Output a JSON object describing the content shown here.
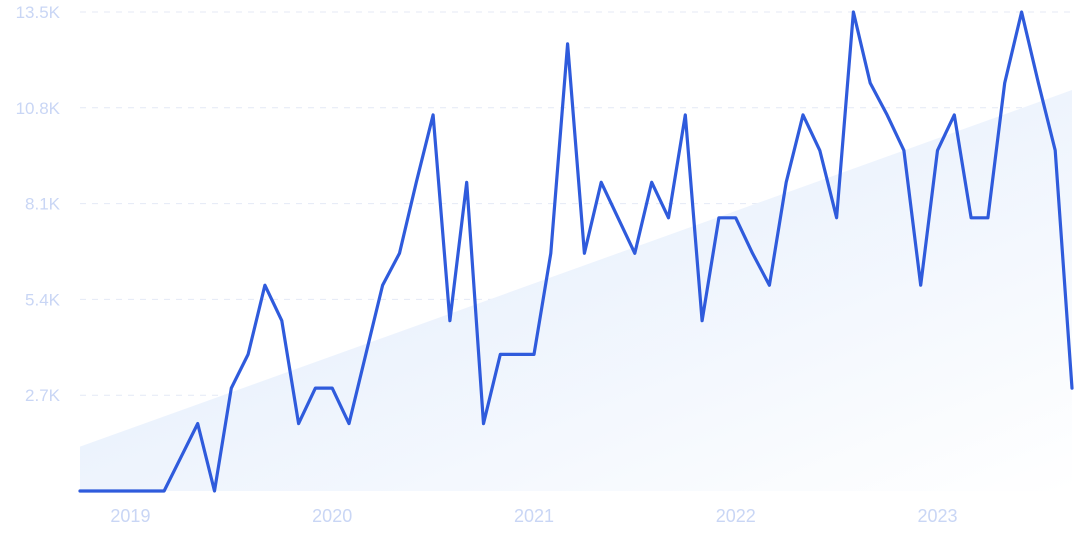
{
  "chart_data": {
    "type": "line",
    "title": "",
    "xlabel": "",
    "ylabel": "",
    "grid": true,
    "legend": "none",
    "colors": {
      "line": "#2f5bdc",
      "trend_fill_start": "#dde9fb",
      "trend_fill_end": "#ffffff",
      "grid": "#e4e9f6",
      "tick_text": "#c9d6f5"
    },
    "y_ticks": [
      "2.7K",
      "5.4K",
      "8.1K",
      "10.8K",
      "13.5K"
    ],
    "y_tick_values": [
      2700,
      5400,
      8100,
      10800,
      13500
    ],
    "ylim": [
      0,
      13500
    ],
    "x_ticks": [
      "2019",
      "2020",
      "2021",
      "2022",
      "2023"
    ],
    "x_tick_values": [
      "2019-01",
      "2020-01",
      "2021-01",
      "2022-01",
      "2023-01"
    ],
    "xlim": [
      "2018-10",
      "2023-09"
    ],
    "trend": {
      "start": 1250,
      "end": 11300
    },
    "series": [
      {
        "x": [
          "2018-10",
          "2018-11",
          "2018-12",
          "2019-01",
          "2019-02",
          "2019-03",
          "2019-04",
          "2019-05",
          "2019-06",
          "2019-07",
          "2019-08",
          "2019-09",
          "2019-10",
          "2019-11",
          "2019-12",
          "2020-01",
          "2020-02",
          "2020-03",
          "2020-04",
          "2020-05",
          "2020-06",
          "2020-07",
          "2020-08",
          "2020-09",
          "2020-10",
          "2020-11",
          "2020-12",
          "2021-01",
          "2021-02",
          "2021-03",
          "2021-04",
          "2021-05",
          "2021-06",
          "2021-07",
          "2021-08",
          "2021-09",
          "2021-10",
          "2021-11",
          "2021-12",
          "2022-01",
          "2022-02",
          "2022-03",
          "2022-04",
          "2022-05",
          "2022-06",
          "2022-07",
          "2022-08",
          "2022-09",
          "2022-10",
          "2022-11",
          "2022-12",
          "2023-01",
          "2023-02",
          "2023-03",
          "2023-04",
          "2023-05",
          "2023-06",
          "2023-07",
          "2023-08",
          "2023-09"
        ],
        "values": [
          0,
          0,
          0,
          0,
          0,
          0,
          950,
          1900,
          0,
          2900,
          3850,
          5800,
          4800,
          1900,
          2900,
          2900,
          1900,
          3850,
          5800,
          6700,
          8700,
          10600,
          4800,
          8700,
          1900,
          3850,
          3850,
          3850,
          6700,
          12600,
          6700,
          8700,
          7700,
          6700,
          8700,
          7700,
          10600,
          4800,
          7700,
          7700,
          6700,
          5800,
          8700,
          10600,
          9600,
          7700,
          13500,
          11500,
          10600,
          9600,
          5800,
          9600,
          10600,
          7700,
          7700,
          11500,
          13500,
          11500,
          9600,
          2900
        ]
      }
    ]
  }
}
